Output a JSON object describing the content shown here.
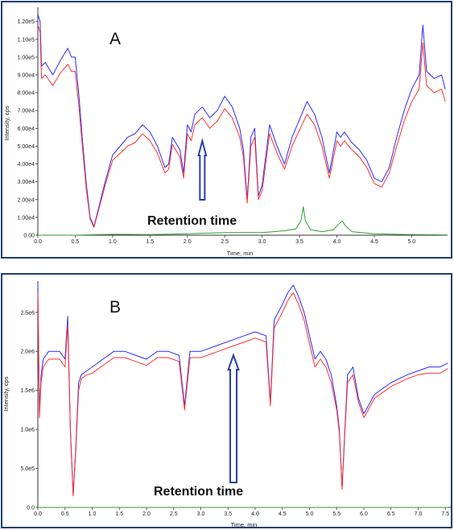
{
  "chart_data": [
    {
      "type": "line",
      "panel_label": "A",
      "xlabel": "Time, min",
      "ylabel": "Intensity, cps",
      "xlim": [
        0,
        5.48
      ],
      "ylim": [
        0,
        128000
      ],
      "x_ticks": [
        0.0,
        0.5,
        1.0,
        1.5,
        2.0,
        2.5,
        3.0,
        3.5,
        4.0,
        4.5,
        5.0
      ],
      "x_tick_labels": [
        "0.0",
        "0.5",
        "1.0",
        "1.5",
        "2.0",
        "2.5",
        "3.0",
        "3.5",
        "4.0",
        "4.5",
        "5.0"
      ],
      "y_ticks": [
        0,
        10000,
        20000,
        30000,
        40000,
        50000,
        60000,
        70000,
        80000,
        90000,
        100000,
        110000,
        120000
      ],
      "y_tick_labels": [
        "0.00",
        "1.00e4",
        "2.00e4",
        "3.00e4",
        "4.00e4",
        "5.00e4",
        "6.00e4",
        "7.00e4",
        "8.00e4",
        "9.00e4",
        "1.00e5",
        "1.10e5",
        "1.20e5"
      ],
      "annotation": "Retention time",
      "arrow_x": 2.2,
      "series": [
        {
          "color": "#2b2bff",
          "x": [
            0,
            0.03,
            0.05,
            0.1,
            0.2,
            0.3,
            0.4,
            0.45,
            0.5,
            0.55,
            0.6,
            0.65,
            0.7,
            0.75,
            0.8,
            0.9,
            1.0,
            1.1,
            1.2,
            1.3,
            1.4,
            1.5,
            1.6,
            1.7,
            1.75,
            1.8,
            1.9,
            1.95,
            2.0,
            2.05,
            2.1,
            2.2,
            2.3,
            2.4,
            2.5,
            2.6,
            2.7,
            2.75,
            2.8,
            2.85,
            2.9,
            2.95,
            3.0,
            3.05,
            3.1,
            3.2,
            3.3,
            3.4,
            3.5,
            3.6,
            3.7,
            3.8,
            3.9,
            4.0,
            4.05,
            4.1,
            4.2,
            4.3,
            4.4,
            4.5,
            4.6,
            4.7,
            4.8,
            4.9,
            5.0,
            5.1,
            5.15,
            5.2,
            5.3,
            5.4,
            5.45
          ],
          "y": [
            124000,
            120000,
            95000,
            97000,
            90000,
            98000,
            105000,
            100000,
            100000,
            78000,
            52000,
            28000,
            10000,
            5000,
            13000,
            30000,
            45000,
            50000,
            55000,
            57000,
            62000,
            58000,
            50000,
            38000,
            40000,
            55000,
            48000,
            35000,
            62000,
            58000,
            68000,
            72000,
            66000,
            70000,
            78000,
            72000,
            60000,
            48000,
            20000,
            55000,
            60000,
            22000,
            28000,
            45000,
            62000,
            50000,
            40000,
            55000,
            65000,
            75000,
            68000,
            55000,
            35000,
            58000,
            55000,
            58000,
            52000,
            48000,
            42000,
            32000,
            30000,
            38000,
            55000,
            70000,
            82000,
            90000,
            118000,
            92000,
            88000,
            90000,
            82000
          ]
        },
        {
          "color": "#ff3030",
          "x": [
            0,
            0.03,
            0.05,
            0.1,
            0.2,
            0.3,
            0.4,
            0.45,
            0.5,
            0.55,
            0.6,
            0.65,
            0.7,
            0.75,
            0.8,
            0.9,
            1.0,
            1.1,
            1.2,
            1.3,
            1.4,
            1.5,
            1.6,
            1.7,
            1.75,
            1.8,
            1.9,
            1.95,
            2.0,
            2.05,
            2.1,
            2.2,
            2.3,
            2.4,
            2.5,
            2.6,
            2.7,
            2.75,
            2.8,
            2.85,
            2.9,
            2.95,
            3.0,
            3.05,
            3.1,
            3.2,
            3.3,
            3.4,
            3.5,
            3.6,
            3.7,
            3.8,
            3.9,
            4.0,
            4.05,
            4.1,
            4.2,
            4.3,
            4.4,
            4.5,
            4.6,
            4.7,
            4.8,
            4.9,
            5.0,
            5.1,
            5.15,
            5.2,
            5.3,
            5.4,
            5.45
          ],
          "y": [
            118000,
            114000,
            88000,
            90000,
            84000,
            91000,
            96000,
            92000,
            92000,
            72000,
            48000,
            25000,
            9000,
            4500,
            12000,
            28000,
            42000,
            46000,
            50000,
            52000,
            57000,
            53000,
            46000,
            35000,
            37000,
            51000,
            44000,
            32000,
            57000,
            53000,
            62000,
            66000,
            60000,
            64000,
            71000,
            66000,
            55000,
            44000,
            18000,
            50000,
            55000,
            20000,
            25000,
            41000,
            57000,
            46000,
            37000,
            50000,
            59000,
            68000,
            62000,
            50000,
            32000,
            53000,
            50000,
            53000,
            48000,
            44000,
            38000,
            29000,
            27000,
            35000,
            50000,
            64000,
            75000,
            82000,
            108000,
            84000,
            80000,
            82000,
            75000
          ]
        },
        {
          "color": "#2e9e2e",
          "x": [
            0,
            0.5,
            1.0,
            1.5,
            2.0,
            2.5,
            3.0,
            3.3,
            3.45,
            3.52,
            3.55,
            3.58,
            3.65,
            3.8,
            3.95,
            4.02,
            4.07,
            4.12,
            4.2,
            4.5,
            5.0,
            5.45
          ],
          "y": [
            0,
            0,
            500,
            300,
            800,
            1500,
            1500,
            2500,
            3500,
            8000,
            16000,
            8000,
            3000,
            2000,
            3000,
            6000,
            8000,
            5000,
            2000,
            800,
            300,
            200
          ]
        }
      ]
    },
    {
      "type": "line",
      "panel_label": "B",
      "xlabel": "Time, min",
      "ylabel": "Intensity, cps",
      "xlim": [
        0,
        7.6
      ],
      "ylim": [
        0,
        2900000
      ],
      "x_ticks": [
        0.0,
        0.5,
        1.0,
        1.5,
        2.0,
        2.5,
        3.0,
        3.5,
        4.0,
        4.5,
        5.0,
        5.5,
        6.0,
        6.5,
        7.0,
        7.5
      ],
      "x_tick_labels": [
        "0.0",
        "0.5",
        "1.0",
        "1.5",
        "2.0",
        "2.5",
        "3.0",
        "3.5",
        "4.0",
        "4.5",
        "5.0",
        "5.5",
        "6.0",
        "6.5",
        "7.0",
        "7.5"
      ],
      "y_ticks": [
        0,
        500000,
        1000000,
        1500000,
        2000000,
        2500000
      ],
      "y_tick_labels": [
        "0.0",
        "5.0e5",
        "1.0e6",
        "1.5e6",
        "2.0e6",
        "2.5e6"
      ],
      "annotation": "Retention time",
      "arrow_x": 3.6,
      "series": [
        {
          "color": "#2b2bff",
          "x": [
            0,
            0.03,
            0.06,
            0.1,
            0.2,
            0.3,
            0.4,
            0.5,
            0.55,
            0.6,
            0.65,
            0.7,
            0.75,
            0.8,
            0.9,
            1.0,
            1.2,
            1.4,
            1.6,
            1.8,
            2.0,
            2.2,
            2.4,
            2.6,
            2.7,
            2.8,
            3.0,
            3.2,
            3.4,
            3.6,
            3.8,
            4.0,
            4.2,
            4.28,
            4.35,
            4.5,
            4.6,
            4.7,
            4.8,
            4.9,
            5.0,
            5.1,
            5.2,
            5.3,
            5.4,
            5.5,
            5.55,
            5.6,
            5.65,
            5.7,
            5.8,
            5.9,
            6.0,
            6.2,
            6.5,
            6.8,
            7.0,
            7.2,
            7.4,
            7.55
          ],
          "y": [
            2850000,
            1200000,
            1700000,
            1900000,
            2000000,
            2000000,
            2000000,
            1900000,
            2450000,
            1000000,
            150000,
            800000,
            1600000,
            1700000,
            1750000,
            1800000,
            1900000,
            2000000,
            2000000,
            1950000,
            1900000,
            2000000,
            2000000,
            1950000,
            1300000,
            2000000,
            2000000,
            2050000,
            2100000,
            2150000,
            2200000,
            2250000,
            2200000,
            1350000,
            2400000,
            2600000,
            2750000,
            2850000,
            2700000,
            2500000,
            2200000,
            1900000,
            2000000,
            1900000,
            1700000,
            1300000,
            1000000,
            250000,
            1000000,
            1700000,
            1800000,
            1400000,
            1200000,
            1450000,
            1600000,
            1700000,
            1750000,
            1800000,
            1800000,
            1850000
          ]
        },
        {
          "color": "#ff3030",
          "x": [
            0,
            0.03,
            0.06,
            0.1,
            0.2,
            0.3,
            0.4,
            0.5,
            0.55,
            0.6,
            0.65,
            0.7,
            0.75,
            0.8,
            0.9,
            1.0,
            1.2,
            1.4,
            1.6,
            1.8,
            2.0,
            2.2,
            2.4,
            2.6,
            2.7,
            2.8,
            3.0,
            3.2,
            3.4,
            3.6,
            3.8,
            4.0,
            4.2,
            4.28,
            4.35,
            4.5,
            4.6,
            4.7,
            4.8,
            4.9,
            5.0,
            5.1,
            5.2,
            5.3,
            5.4,
            5.5,
            5.55,
            5.6,
            5.65,
            5.7,
            5.8,
            5.9,
            6.0,
            6.2,
            6.5,
            6.8,
            7.0,
            7.2,
            7.4,
            7.55
          ],
          "y": [
            2750000,
            1150000,
            1600000,
            1800000,
            1900000,
            1900000,
            1900000,
            1800000,
            2350000,
            950000,
            150000,
            750000,
            1500000,
            1650000,
            1700000,
            1720000,
            1820000,
            1920000,
            1920000,
            1870000,
            1820000,
            1920000,
            1920000,
            1870000,
            1250000,
            1920000,
            1920000,
            1970000,
            2020000,
            2070000,
            2120000,
            2170000,
            2120000,
            1300000,
            2300000,
            2500000,
            2650000,
            2750000,
            2600000,
            2400000,
            2100000,
            1800000,
            1900000,
            1800000,
            1600000,
            1250000,
            950000,
            230000,
            950000,
            1600000,
            1700000,
            1350000,
            1150000,
            1400000,
            1550000,
            1650000,
            1700000,
            1720000,
            1720000,
            1780000
          ]
        },
        {
          "color": "#2e9e2e",
          "x": [
            0,
            7.55
          ],
          "y": [
            0,
            0
          ]
        }
      ]
    }
  ]
}
